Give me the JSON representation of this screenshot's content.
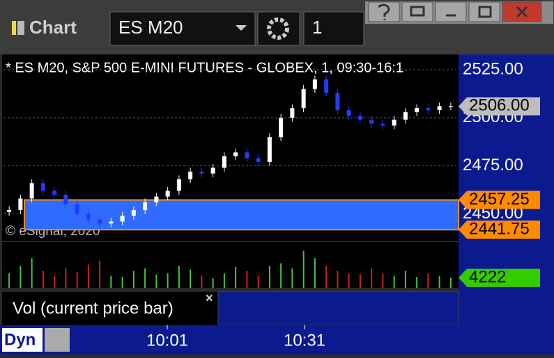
{
  "window": {
    "title": "Chart",
    "symbol": "ES M20",
    "interval": "1"
  },
  "chart_data": {
    "type": "candlestick",
    "title": "* ES M20, S&P 500 E-MINI FUTURES - GLOBEX, 1, 09:30-16:1",
    "watermark": "© eSignal, 2020",
    "up_color": "#ffffff",
    "down_color": "#1f3cff",
    "open": [
      2451,
      2452,
      2458,
      2466,
      2462,
      2460,
      2455,
      2450,
      2447,
      2445,
      2446,
      2449,
      2452,
      2456,
      2459,
      2462,
      2468,
      2472,
      2471,
      2474,
      2480,
      2482,
      2479,
      2477,
      2490,
      2500,
      2505,
      2515,
      2520,
      2513,
      2504,
      2501,
      2499,
      2497,
      2496,
      2499,
      2503,
      2505,
      2504,
      2506
    ],
    "high": [
      2454,
      2460,
      2468,
      2468,
      2464,
      2462,
      2457,
      2452,
      2449,
      2448,
      2451,
      2454,
      2458,
      2461,
      2464,
      2470,
      2474,
      2474,
      2476,
      2482,
      2484,
      2484,
      2481,
      2492,
      2502,
      2507,
      2517,
      2522,
      2522,
      2515,
      2506,
      2503,
      2501,
      2499,
      2501,
      2505,
      2507,
      2507,
      2508,
      2508
    ],
    "low": [
      2449,
      2450,
      2456,
      2460,
      2458,
      2453,
      2448,
      2445,
      2443,
      2443,
      2444,
      2447,
      2450,
      2454,
      2457,
      2460,
      2466,
      2469,
      2469,
      2472,
      2478,
      2477,
      2475,
      2475,
      2488,
      2498,
      2503,
      2513,
      2511,
      2502,
      2499,
      2497,
      2495,
      2494,
      2494,
      2497,
      2501,
      2502,
      2502,
      2504
    ],
    "close": [
      2452,
      2458,
      2466,
      2462,
      2460,
      2455,
      2450,
      2447,
      2445,
      2446,
      2449,
      2452,
      2456,
      2459,
      2462,
      2468,
      2472,
      2471,
      2474,
      2480,
      2482,
      2479,
      2477,
      2490,
      2500,
      2505,
      2515,
      2520,
      2513,
      2504,
      2501,
      2499,
      2497,
      2496,
      2499,
      2503,
      2505,
      2504,
      2506,
      2506
    ],
    "ylim": [
      2436,
      2533
    ],
    "yticks": [
      {
        "value": 2450,
        "label": "2450.00"
      },
      {
        "value": 2475,
        "label": "2475.00"
      },
      {
        "value": 2500,
        "label": "2500.00"
      },
      {
        "value": 2525,
        "label": "2525.00"
      }
    ],
    "last_price": {
      "value": 2506,
      "label": "2506.00"
    },
    "band": {
      "high": 2457.25,
      "low": 2441.75,
      "color": "#2f6bff",
      "border": "#ff8c00"
    },
    "volume": {
      "label": "Vol (current price bar)",
      "values": [
        6000,
        9000,
        12000,
        7000,
        5000,
        8000,
        6500,
        9500,
        11000,
        5000,
        4500,
        7000,
        8000,
        5500,
        6000,
        9000,
        7500,
        5000,
        4000,
        6000,
        8500,
        7000,
        5000,
        9000,
        10000,
        8000,
        15000,
        12000,
        9000,
        7000,
        6000,
        5500,
        8000,
        6000,
        5000,
        7000,
        4500,
        6000,
        5000,
        4222
      ],
      "ylim": [
        0,
        18500
      ],
      "last_label": "4222"
    },
    "xticks": [
      "10:01",
      "10:31"
    ],
    "scale_mode": "Dyn"
  }
}
